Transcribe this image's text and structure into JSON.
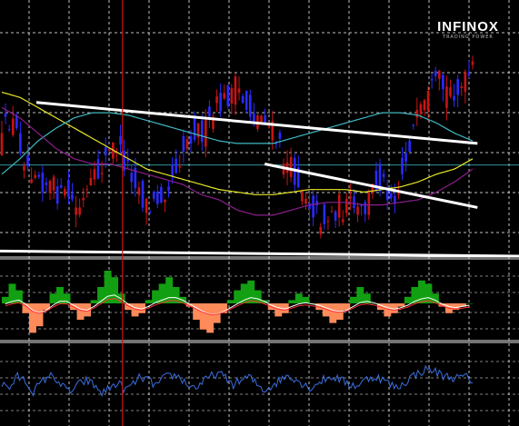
{
  "logo": {
    "brand": "INFINOX",
    "tagline": "TRADING POWER"
  },
  "colors": {
    "background": "#000000",
    "grid": "#ffffff",
    "candle_up": "#2a2aff",
    "candle_down": "#c81414",
    "ma_yellow": "#e6e62a",
    "ma_cyan": "#3fb9c2",
    "ma_purple": "#8a1f8a",
    "trendline": "#ffffff",
    "vertical_marker": "#c81414",
    "hist_positive": "#12a012",
    "hist_negative": "#ff8a5a",
    "signal_line": "#ffffff",
    "signal_line_2": "#ff3030",
    "oscillator": "#3a6fe0",
    "horizontal_level": "#3fb9c2"
  },
  "chart_data": [
    {
      "type": "candlestick",
      "panel": "price",
      "trend": [
        0.56,
        0.46,
        0.5,
        0.58,
        0.66,
        0.64,
        0.7,
        0.72,
        0.74,
        0.78,
        0.76,
        0.82,
        0.8,
        0.74,
        0.7,
        0.64,
        0.6,
        0.56,
        0.62,
        0.66,
        0.7,
        0.78,
        0.82,
        0.78,
        0.74,
        0.7,
        0.64,
        0.58,
        0.52,
        0.5,
        0.52,
        0.48,
        0.42,
        0.4,
        0.36,
        0.34,
        0.4,
        0.44,
        0.46,
        0.44,
        0.5,
        0.56,
        0.62,
        0.66,
        0.7,
        0.74,
        0.8,
        0.84,
        0.86,
        0.84,
        0.8,
        0.82,
        0.8,
        0.84,
        0.82,
        0.74,
        0.7,
        0.72,
        0.76,
        0.74,
        0.62,
        0.52,
        0.46,
        0.42,
        0.36,
        0.32,
        0.36,
        0.34,
        0.36,
        0.32,
        0.28
      ],
      "ma_yellow": [
        0.36,
        0.38,
        0.42,
        0.46,
        0.5,
        0.54,
        0.58,
        0.62,
        0.66,
        0.68,
        0.7,
        0.72,
        0.74,
        0.75,
        0.76,
        0.76,
        0.75,
        0.74,
        0.74,
        0.74,
        0.75,
        0.74,
        0.73,
        0.71,
        0.68,
        0.66,
        0.62
      ],
      "ma_cyan": [
        0.68,
        0.62,
        0.55,
        0.5,
        0.46,
        0.44,
        0.44,
        0.45,
        0.47,
        0.49,
        0.51,
        0.53,
        0.55,
        0.56,
        0.56,
        0.56,
        0.54,
        0.52,
        0.5,
        0.48,
        0.46,
        0.44,
        0.44,
        0.45,
        0.48,
        0.52,
        0.55
      ],
      "ma_purple": [
        0.42,
        0.46,
        0.52,
        0.58,
        0.62,
        0.64,
        0.64,
        0.66,
        0.68,
        0.7,
        0.72,
        0.76,
        0.78,
        0.82,
        0.84,
        0.84,
        0.82,
        0.8,
        0.79,
        0.79,
        0.8,
        0.8,
        0.79,
        0.78,
        0.75,
        0.71,
        0.66
      ],
      "trendlines": [
        {
          "from": [
            0.07,
            0.4
          ],
          "to": [
            0.92,
            0.56
          ]
        },
        {
          "from": [
            0.51,
            0.64
          ],
          "to": [
            0.92,
            0.81
          ]
        },
        {
          "from": [
            0.0,
            0.98
          ],
          "to": [
            1.0,
            1.0
          ]
        }
      ],
      "horizontal_level": 0.7,
      "vertical_marker_x": 0.236
    },
    {
      "type": "histogram",
      "panel": "macd",
      "values": [
        0.2,
        0.6,
        0.4,
        -0.3,
        -0.9,
        -0.7,
        -0.2,
        0.3,
        0.5,
        0.3,
        -0.2,
        -0.5,
        -0.4,
        0.1,
        0.5,
        1.0,
        0.8,
        0.3,
        -0.2,
        -0.4,
        -0.3,
        0.1,
        0.4,
        0.6,
        0.8,
        0.5,
        0.2,
        -0.1,
        -0.5,
        -0.8,
        -0.9,
        -0.6,
        -0.3,
        0.1,
        0.4,
        0.6,
        0.7,
        0.4,
        0.1,
        -0.2,
        -0.4,
        -0.3,
        0.1,
        0.3,
        0.2,
        0.0,
        -0.2,
        -0.4,
        -0.6,
        -0.5,
        -0.2,
        0.2,
        0.5,
        0.3,
        0.0,
        -0.2,
        -0.4,
        -0.3,
        -0.1,
        0.2,
        0.5,
        0.7,
        0.6,
        0.3,
        -0.1,
        -0.3,
        -0.2,
        -0.1,
        0.0
      ],
      "signal": [
        0.1,
        0.3,
        0.4,
        0.1,
        -0.4,
        -0.6,
        -0.4,
        0.0,
        0.3,
        0.3,
        0.0,
        -0.3,
        -0.4,
        -0.1,
        0.3,
        0.7,
        0.8,
        0.5,
        0.1,
        -0.2,
        -0.3,
        -0.1,
        0.2,
        0.4,
        0.6,
        0.6,
        0.4,
        0.1,
        -0.2,
        -0.5,
        -0.7,
        -0.7,
        -0.5,
        -0.2,
        0.1,
        0.4,
        0.6,
        0.5,
        0.3,
        0.0,
        -0.2,
        -0.3,
        -0.1,
        0.1,
        0.2,
        0.1,
        0.0,
        -0.2,
        -0.4,
        -0.5,
        -0.4,
        -0.1,
        0.2,
        0.3,
        0.2,
        0.0,
        -0.2,
        -0.3,
        -0.2,
        0.0,
        0.3,
        0.5,
        0.6,
        0.4,
        0.1,
        -0.1,
        -0.2,
        -0.1,
        0.0
      ]
    },
    {
      "type": "line",
      "panel": "oscillator",
      "values": [
        0.5,
        0.45,
        0.6,
        0.55,
        0.4,
        0.5,
        0.62,
        0.58,
        0.45,
        0.4,
        0.5,
        0.55,
        0.48,
        0.38,
        0.45,
        0.52,
        0.42,
        0.5,
        0.6,
        0.55,
        0.48,
        0.58,
        0.62,
        0.6,
        0.5,
        0.45,
        0.52,
        0.6,
        0.65,
        0.58,
        0.5,
        0.55,
        0.6,
        0.5,
        0.42,
        0.48,
        0.55,
        0.62,
        0.58,
        0.5,
        0.45,
        0.52,
        0.58,
        0.6,
        0.55,
        0.5,
        0.48,
        0.55,
        0.6,
        0.58,
        0.52,
        0.45,
        0.5,
        0.6,
        0.65,
        0.7,
        0.68,
        0.62,
        0.6,
        0.58,
        0.6,
        0.55
      ]
    }
  ]
}
